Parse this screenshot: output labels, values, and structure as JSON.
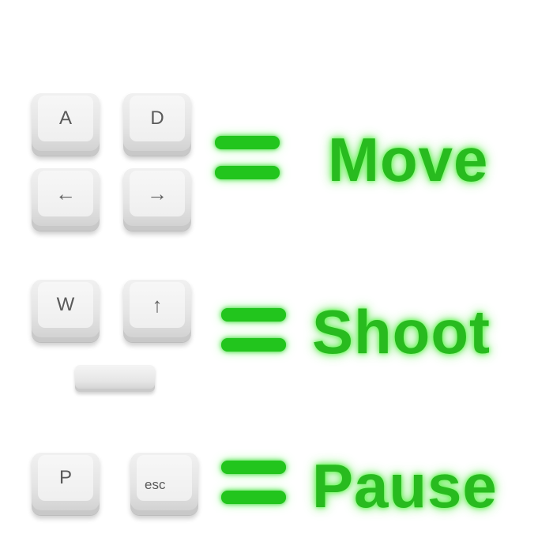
{
  "controls": [
    {
      "keys": [
        {
          "label": "A",
          "icon": ""
        },
        {
          "label": "D",
          "icon": ""
        },
        {
          "label": "",
          "icon": "arrow-left-icon",
          "glyph": "←"
        },
        {
          "label": "",
          "icon": "arrow-right-icon",
          "glyph": "→"
        }
      ],
      "action": "Move"
    },
    {
      "keys": [
        {
          "label": "W",
          "icon": ""
        },
        {
          "label": "",
          "icon": "arrow-up-icon",
          "glyph": "↑"
        },
        {
          "label": "",
          "icon": "spacebar"
        }
      ],
      "action": "Shoot"
    },
    {
      "keys": [
        {
          "label": "P",
          "icon": ""
        },
        {
          "label": "esc",
          "icon": ""
        }
      ],
      "action": "Pause"
    }
  ],
  "colors": {
    "accent_green": "#28bb1f",
    "key_face": "#efefef",
    "key_legend": "#5a5a5a",
    "background": "#ffffff"
  }
}
